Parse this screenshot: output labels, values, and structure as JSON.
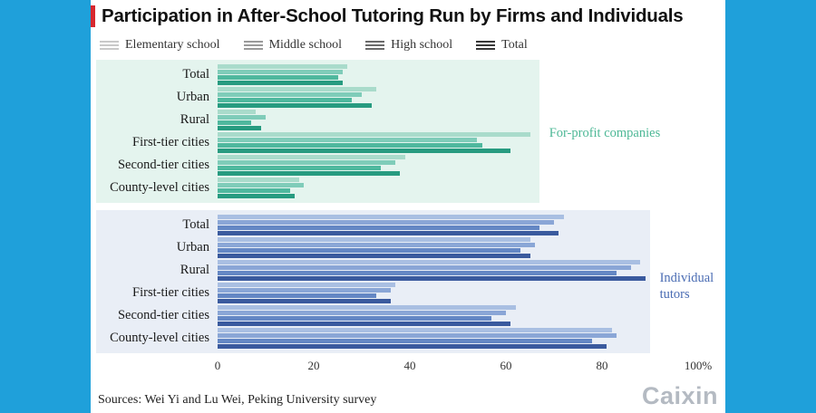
{
  "page": {
    "background_color": "#1fa0da",
    "accent_color": "#d7282f",
    "title": "Participation in After-School Tutoring Run by Firms and Individuals",
    "source": "Sources: Wei Yi and Lu Wei, Peking University survey",
    "logo": "Caixin"
  },
  "legend": [
    {
      "label": "Elementary school",
      "color": "#c9c9c9"
    },
    {
      "label": "Middle school",
      "color": "#9a9a9a"
    },
    {
      "label": "High school",
      "color": "#6a6a6a"
    },
    {
      "label": "Total",
      "color": "#383838"
    }
  ],
  "chart_data": {
    "type": "bar",
    "orientation": "horizontal",
    "unit": "%",
    "xlim": [
      0,
      100
    ],
    "x_ticks": [
      0,
      20,
      40,
      60,
      80,
      100
    ],
    "x_tick_labels": [
      "0",
      "20",
      "40",
      "60",
      "80",
      "100%"
    ],
    "grid": false,
    "series_names": [
      "Elementary school",
      "Middle school",
      "High school",
      "Total"
    ],
    "panels": [
      {
        "name": "For-profit companies",
        "label_color": "#4db896",
        "panel_bg": "#e4f4ee",
        "panel_right_value": 67,
        "bar_colors": [
          "#a9dbcb",
          "#7fccb9",
          "#4fb89e",
          "#279b80"
        ],
        "rows": [
          {
            "category": "Total",
            "values": [
              27,
              26,
              25,
              26
            ]
          },
          {
            "category": "Urban",
            "values": [
              33,
              30,
              28,
              32
            ]
          },
          {
            "category": "Rural",
            "values": [
              8,
              10,
              7,
              9
            ]
          },
          {
            "category": "First-tier cities",
            "values": [
              65,
              54,
              55,
              61
            ]
          },
          {
            "category": "Second-tier cities",
            "values": [
              39,
              37,
              34,
              38
            ]
          },
          {
            "category": "County-level cities",
            "values": [
              17,
              18,
              15,
              16
            ]
          }
        ]
      },
      {
        "name": "Individual tutors",
        "label_color": "#4a6cb3",
        "panel_bg": "#e9eef6",
        "panel_right_value": 90,
        "bar_colors": [
          "#a9bfe2",
          "#8aa6d6",
          "#6487c4",
          "#3a5a9e"
        ],
        "rows": [
          {
            "category": "Total",
            "values": [
              72,
              70,
              67,
              71
            ]
          },
          {
            "category": "Urban",
            "values": [
              65,
              66,
              63,
              65
            ]
          },
          {
            "category": "Rural",
            "values": [
              88,
              86,
              83,
              89
            ]
          },
          {
            "category": "First-tier cities",
            "values": [
              37,
              36,
              33,
              36
            ]
          },
          {
            "category": "Second-tier cities",
            "values": [
              62,
              60,
              57,
              61
            ]
          },
          {
            "category": "County-level cities",
            "values": [
              82,
              83,
              78,
              81
            ]
          }
        ]
      }
    ]
  }
}
